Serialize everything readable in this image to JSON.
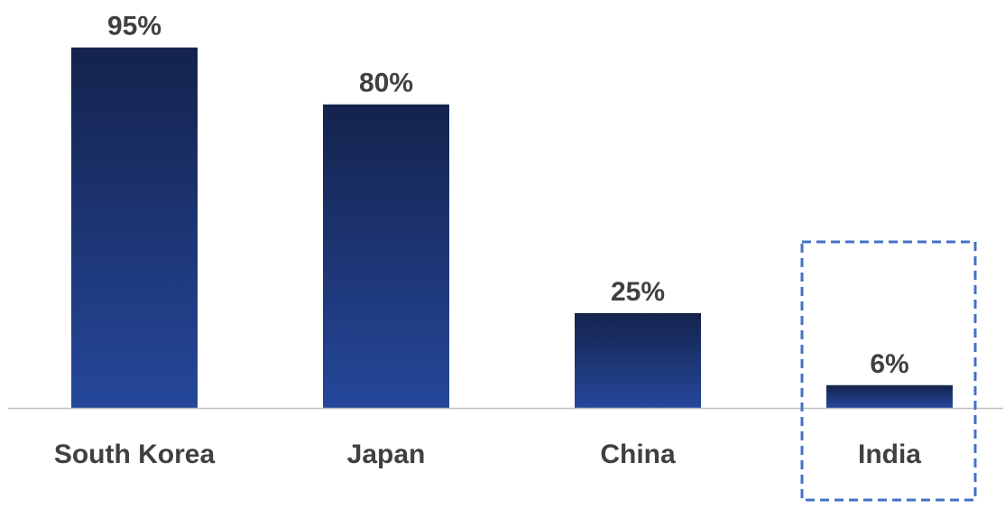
{
  "chart_data": {
    "type": "bar",
    "title": "",
    "xlabel": "",
    "ylabel": "",
    "categories": [
      "South Korea",
      "Japan",
      "China",
      "India"
    ],
    "values": [
      95,
      80,
      25,
      6
    ],
    "data_labels": [
      "95%",
      "80%",
      "25%",
      "6%"
    ],
    "unit": "%",
    "ylim": [
      0,
      100
    ],
    "grid": false,
    "legend": "none",
    "highlighted_category": "India",
    "colors": {
      "bar_top": "#14234d",
      "bar_bottom": "#25479a",
      "label_text": "#404040",
      "axis_line": "#bfbfbf",
      "highlight_box": "#4472c4"
    }
  }
}
